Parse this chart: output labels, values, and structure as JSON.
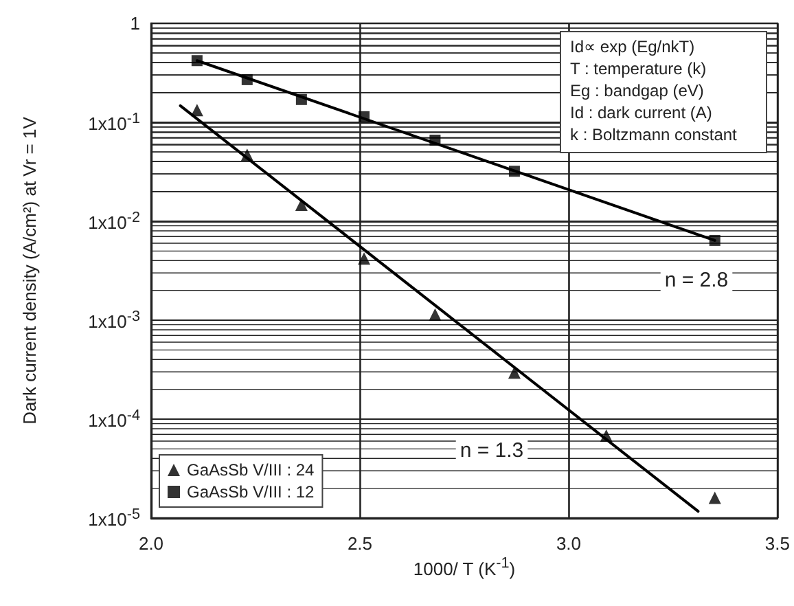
{
  "chart_data": {
    "type": "scatter",
    "xlabel": "1000/ T (K$^{-1}$)",
    "ylabel": "Dark current density (A/cm²) at Vr = 1V",
    "xlim": [
      2.0,
      3.5
    ],
    "xticks": [
      {
        "value": 2.0,
        "label": "2.0"
      },
      2.5,
      {
        "value": 3.0,
        "label": "3.0"
      },
      3.5
    ],
    "ylim": [
      1e-05,
      1
    ],
    "yticks": [
      {
        "value": 1e-05,
        "label": "1x10$^{-5}$"
      },
      {
        "value": 0.0001,
        "label": "1x10$^{-4}$"
      },
      {
        "value": 0.001,
        "label": "1x10$^{-3}$"
      },
      {
        "value": 0.01,
        "label": "1x10$^{-2}$"
      },
      {
        "value": 0.1,
        "label": "1x10$^{-1}$"
      },
      1
    ],
    "log": "y",
    "grid": true,
    "legend": "bottom left",
    "series": [
      {
        "name": "GaAsSb V/III : 24",
        "marker": "triangle",
        "color": "#000000",
        "x": [
          2.11,
          2.23,
          2.36,
          2.51,
          2.68,
          2.87,
          3.09,
          3.35
        ],
        "values": [
          0.133,
          0.047,
          0.0147,
          0.0042,
          0.00114,
          0.000295,
          6.8e-05,
          1.6e-05
        ]
      },
      {
        "name": "GaAsSb V/III : 12",
        "marker": "square",
        "color": "#000000",
        "x": [
          2.11,
          2.23,
          2.36,
          2.51,
          2.68,
          2.87,
          3.35
        ],
        "values": [
          0.42,
          0.27,
          0.17,
          0.114,
          0.066,
          0.032,
          0.0064
        ]
      },
      {
        "type": "line",
        "marker": "none",
        "color": "#000000",
        "x": [
          2.07,
          3.31
        ],
        "values": [
          0.147,
          1.17e-05
        ]
      },
      {
        "type": "line",
        "marker": "none",
        "color": "#000000",
        "x": [
          2.11,
          3.35
        ],
        "values": [
          0.42,
          0.0064
        ]
      }
    ],
    "annotations": [
      "n = 2.8",
      "n = 1.3",
      "Id∝ exp (Eg/nkT)",
      "T : temperature (k)",
      "Eg : bandgap (eV)",
      "Id : dark current (A)",
      "k : Boltzmann constant"
    ]
  }
}
